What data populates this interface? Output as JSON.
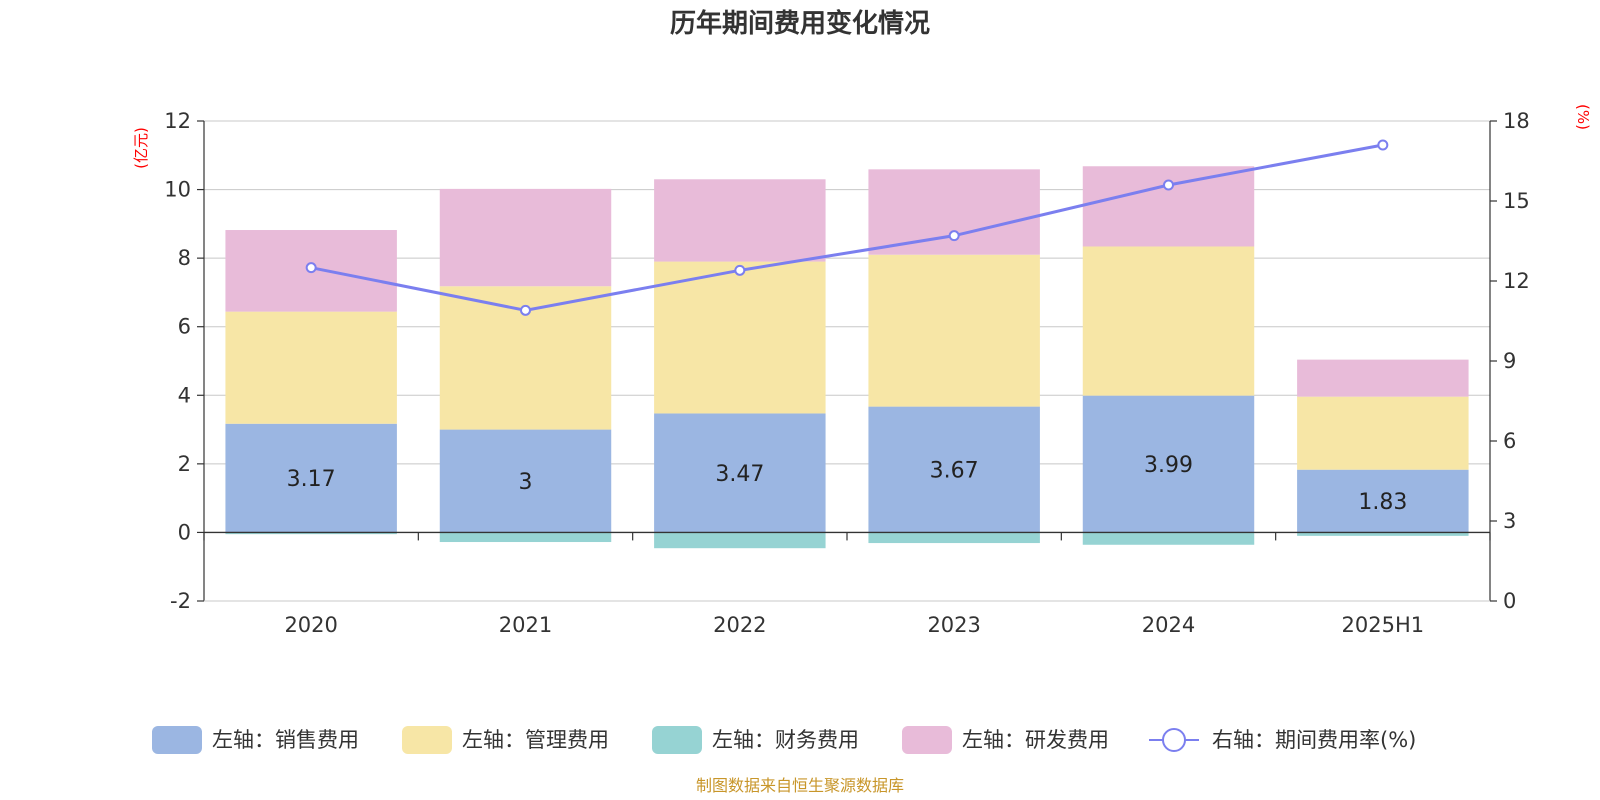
{
  "chart_data": {
    "type": "bar",
    "stacked": true,
    "title": "历年期间费用变化情况",
    "categories": [
      "2020",
      "2021",
      "2022",
      "2023",
      "2024",
      "2025H1"
    ],
    "series": [
      {
        "name": "左轴：销售费用",
        "axis": "left",
        "color": "#9bb6e2",
        "values": [
          3.17,
          3.0,
          3.47,
          3.67,
          3.99,
          1.83
        ],
        "labels": [
          "3.17",
          "3",
          "3.47",
          "3.67",
          "3.99",
          "1.83"
        ]
      },
      {
        "name": "左轴：管理费用",
        "axis": "left",
        "color": "#f7e6a6",
        "values": [
          3.27,
          4.18,
          4.43,
          4.43,
          4.35,
          2.13
        ]
      },
      {
        "name": "左轴：财务费用",
        "axis": "left",
        "color": "#96d3d3",
        "values": [
          -0.05,
          -0.28,
          -0.46,
          -0.31,
          -0.36,
          -0.1
        ]
      },
      {
        "name": "左轴：研发费用",
        "axis": "left",
        "color": "#e8bbd9",
        "values": [
          2.38,
          2.84,
          2.4,
          2.49,
          2.34,
          1.08
        ]
      }
    ],
    "line": {
      "name": "右轴：期间费用率(%)",
      "axis": "right",
      "color": "#7b7fef",
      "values": [
        12.5,
        10.9,
        12.4,
        13.7,
        15.6,
        17.1
      ]
    },
    "yleft": {
      "unit": "(亿元)",
      "min": -2,
      "max": 12,
      "ticks": [
        -2,
        0,
        2,
        4,
        6,
        8,
        10,
        12
      ]
    },
    "yright": {
      "unit": "(%)",
      "min": 0,
      "max": 18,
      "ticks": [
        0,
        3,
        6,
        9,
        12,
        15,
        18
      ]
    },
    "grid": true,
    "legend_position": "bottom",
    "source": "制图数据来自恒生聚源数据库"
  }
}
